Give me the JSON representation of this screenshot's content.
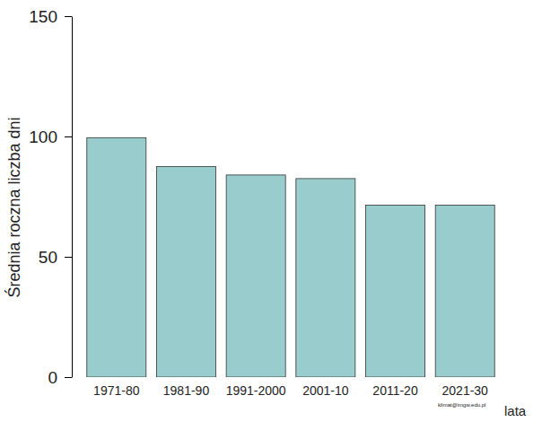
{
  "chart_data": {
    "type": "bar",
    "y_label": "Średnia roczna liczba dni",
    "x_label": "lata",
    "annotations": [
      "klimat@imgw.edu.pl"
    ],
    "categories": [
      "1971-80",
      "1981-90",
      "1991-2000",
      "2001-10",
      "2011-20",
      "2021-30"
    ],
    "values": [
      99.5,
      87.5,
      84,
      82.5,
      71.5,
      71.5
    ],
    "color": "#99cccc",
    "ylim": [
      0,
      150
    ],
    "yticks": [
      0,
      50,
      100,
      150
    ],
    "grid": false
  }
}
